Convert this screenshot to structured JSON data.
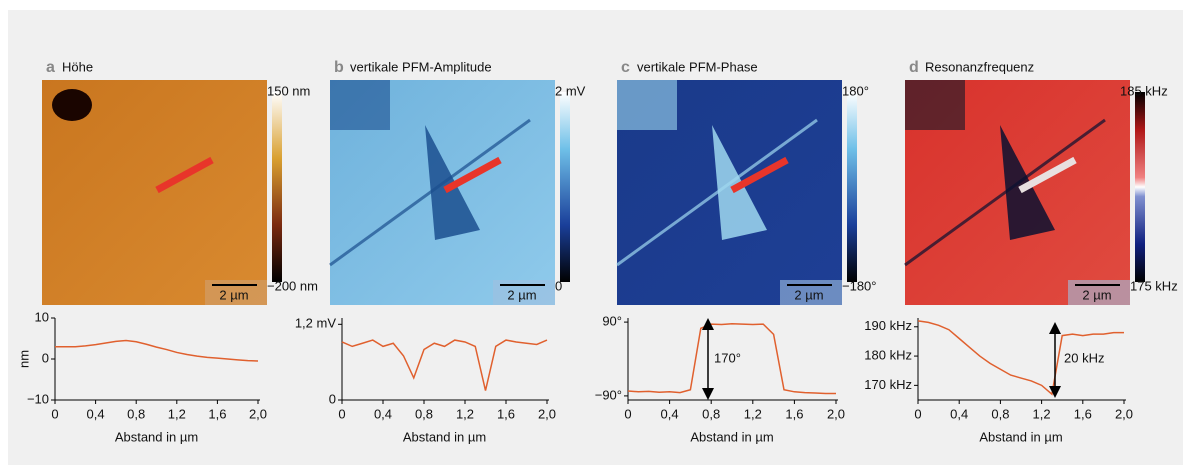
{
  "chart_data": [
    {
      "type": "line",
      "panel": "a",
      "title": "Höhe",
      "colorbar_labels": [
        "150 nm",
        "−200 nm"
      ],
      "scale_bar": "2 µm",
      "xlabel": "Abstand in µm",
      "ylabel": "nm",
      "x": [
        0,
        0.1,
        0.2,
        0.3,
        0.4,
        0.5,
        0.6,
        0.7,
        0.8,
        0.9,
        1.0,
        1.1,
        1.2,
        1.3,
        1.4,
        1.5,
        1.6,
        1.7,
        1.8,
        1.9,
        2.0
      ],
      "series": [
        {
          "color": "#e0602e",
          "values": [
            3,
            3,
            3,
            3.2,
            3.5,
            3.9,
            4.3,
            4.5,
            4.2,
            3.6,
            2.9,
            2.3,
            1.6,
            1.1,
            0.7,
            0.4,
            0.2,
            0,
            -0.2,
            -0.4,
            -0.5
          ]
        }
      ],
      "xlim": [
        0,
        2
      ],
      "xticks": [
        0,
        {
          "value": 0.4,
          "label": "0,4"
        },
        {
          "value": 0.8,
          "label": "0,8"
        },
        {
          "value": 1.2,
          "label": "1,2"
        },
        {
          "value": 1.6,
          "label": "1,6"
        },
        {
          "value": 2.0,
          "label": "2,0"
        }
      ],
      "ylim": [
        -10,
        10
      ],
      "yticks": [
        {
          "value": -10,
          "label": "−10"
        },
        0,
        10
      ]
    },
    {
      "type": "line",
      "panel": "b",
      "title": "vertikale PFM-Amplitude",
      "colorbar_labels": [
        "2 mV",
        "0"
      ],
      "scale_bar": "2 µm",
      "xlabel": "Abstand in µm",
      "x": [
        0,
        0.1,
        0.2,
        0.3,
        0.4,
        0.5,
        0.6,
        0.7,
        0.8,
        0.9,
        1.0,
        1.1,
        1.2,
        1.3,
        1.4,
        1.5,
        1.6,
        1.7,
        1.8,
        1.9,
        2.0
      ],
      "series": [
        {
          "color": "#e0602e",
          "values": [
            0.92,
            0.85,
            0.9,
            0.95,
            0.85,
            0.9,
            0.7,
            0.35,
            0.8,
            0.9,
            0.85,
            0.95,
            0.92,
            0.85,
            0.15,
            0.85,
            0.95,
            0.92,
            0.9,
            0.88,
            0.95
          ]
        }
      ],
      "xlim": [
        0,
        2
      ],
      "xticks": [
        0,
        {
          "value": 0.4,
          "label": "0,4"
        },
        {
          "value": 0.8,
          "label": "0,8"
        },
        {
          "value": 1.2,
          "label": "1,2"
        },
        {
          "value": 1.6,
          "label": "1,6"
        },
        {
          "value": 2.0,
          "label": "2,0"
        }
      ],
      "ylim": [
        0,
        1.3
      ],
      "yticks": [
        0,
        {
          "value": 1.2,
          "label": "1,2 mV"
        }
      ]
    },
    {
      "type": "line",
      "panel": "c",
      "title": "vertikale PFM-Phase",
      "colorbar_labels": [
        "180°",
        "−180°"
      ],
      "scale_bar": "2 µm",
      "xlabel": "Abstand in µm",
      "annotation": "170°",
      "x": [
        0,
        0.1,
        0.2,
        0.3,
        0.4,
        0.5,
        0.6,
        0.7,
        0.8,
        0.9,
        1.0,
        1.1,
        1.2,
        1.3,
        1.4,
        1.5,
        1.6,
        1.7,
        1.8,
        1.9,
        2.0
      ],
      "series": [
        {
          "color": "#e0602e",
          "values": [
            -78,
            -80,
            -79,
            -81,
            -80,
            -82,
            -75,
            75,
            85,
            84,
            86,
            85,
            84,
            85,
            60,
            -75,
            -80,
            -82,
            -83,
            -84,
            -84
          ]
        }
      ],
      "xlim": [
        0,
        2
      ],
      "xticks": [
        0,
        {
          "value": 0.4,
          "label": "0,4"
        },
        {
          "value": 0.8,
          "label": "0,8"
        },
        {
          "value": 1.2,
          "label": "1,2"
        },
        {
          "value": 1.6,
          "label": "1,6"
        },
        {
          "value": 2.0,
          "label": "2,0"
        }
      ],
      "ylim": [
        -100,
        100
      ],
      "yticks": [
        {
          "value": -90,
          "label": "−90°"
        },
        {
          "value": 90,
          "label": "90°"
        }
      ]
    },
    {
      "type": "line",
      "panel": "d",
      "title": "Resonanzfrequenz",
      "colorbar_labels": [
        "185 kHz",
        "175 kHz"
      ],
      "scale_bar": "2 µm",
      "xlabel": "Abstand in µm",
      "annotation": "20 kHz",
      "x": [
        0,
        0.1,
        0.2,
        0.3,
        0.4,
        0.5,
        0.6,
        0.7,
        0.8,
        0.9,
        1.0,
        1.1,
        1.2,
        1.3,
        1.4,
        1.5,
        1.6,
        1.7,
        1.8,
        1.9,
        2.0
      ],
      "series": [
        {
          "color": "#e0602e",
          "values": [
            192,
            191.5,
            190.5,
            189,
            186,
            183,
            180,
            177.5,
            175.5,
            173.5,
            172.5,
            171.5,
            170,
            167,
            187,
            187.5,
            187,
            187.5,
            187.5,
            188,
            188
          ]
        }
      ],
      "xlim": [
        0,
        2
      ],
      "xticks": [
        0,
        {
          "value": 0.4,
          "label": "0,4"
        },
        {
          "value": 0.8,
          "label": "0,8"
        },
        {
          "value": 1.2,
          "label": "1,2"
        },
        {
          "value": 1.6,
          "label": "1,6"
        },
        {
          "value": 2.0,
          "label": "2,0"
        }
      ],
      "ylim": [
        165,
        193
      ],
      "yticks": [
        {
          "value": 170,
          "label": "170 kHz"
        },
        {
          "value": 180,
          "label": "180 kHz"
        },
        {
          "value": 190,
          "label": "190 kHz"
        }
      ]
    }
  ]
}
